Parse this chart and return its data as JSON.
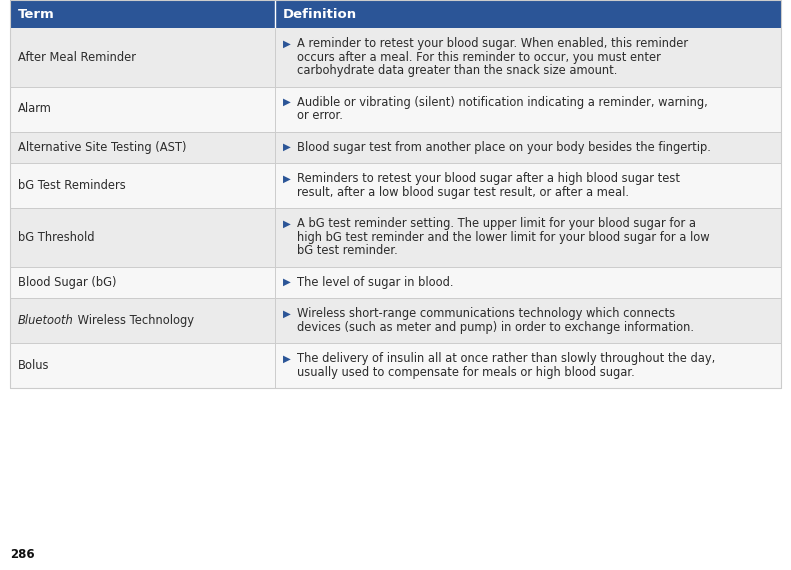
{
  "header_bg": "#2B5597",
  "header_text_color": "#FFFFFF",
  "row_bg_light": "#EBEBEB",
  "row_bg_white": "#F7F7F7",
  "body_text_color": "#2C2C2C",
  "bullet_color": "#2B5597",
  "border_color": "#CCCCCC",
  "page_number": "286",
  "figsize": [
    7.91,
    5.7
  ],
  "dpi": 100,
  "rows": [
    {
      "term": "After Meal Reminder",
      "term_italic": false,
      "def_lines": [
        "▶A reminder to retest your blood sugar. When enabled, this reminder",
        "occurs after a meal. For this reminder to occur, you must enter",
        "carbohydrate data greater than the snack size amount."
      ],
      "bg": "light"
    },
    {
      "term": "Alarm",
      "term_italic": false,
      "def_lines": [
        "▶Audible or vibrating (silent) notification indicating a reminder, warning,",
        "or error."
      ],
      "bg": "white"
    },
    {
      "term": "Alternative Site Testing (AST)",
      "term_italic": false,
      "def_lines": [
        "▶Blood sugar test from another place on your body besides the fingertip."
      ],
      "bg": "light"
    },
    {
      "term": "bG Test Reminders",
      "term_italic": false,
      "def_lines": [
        "▶Reminders to retest your blood sugar after a high blood sugar test",
        "result, after a low blood sugar test result, or after a meal."
      ],
      "bg": "white"
    },
    {
      "term": "bG Threshold",
      "term_italic": false,
      "def_lines": [
        "▶A bG test reminder setting. The upper limit for your blood sugar for a",
        "high bG test reminder and the lower limit for your blood sugar for a low",
        "bG test reminder."
      ],
      "bg": "light"
    },
    {
      "term": "Blood Sugar (bG)",
      "term_italic": false,
      "def_lines": [
        "▶The level of sugar in blood."
      ],
      "bg": "white"
    },
    {
      "term_parts": [
        [
          "Bluetooth",
          true
        ],
        [
          " Wireless Technology",
          false
        ]
      ],
      "def_lines": [
        "▶Wireless short-range communications technology which connects",
        "devices (such as meter and pump) in order to exchange information."
      ],
      "bg": "light"
    },
    {
      "term": "Bolus",
      "term_italic": false,
      "def_lines": [
        "▶The delivery of insulin all at once rather than slowly throughout the day,",
        "usually used to compensate for meals or high blood sugar."
      ],
      "bg": "white"
    }
  ]
}
